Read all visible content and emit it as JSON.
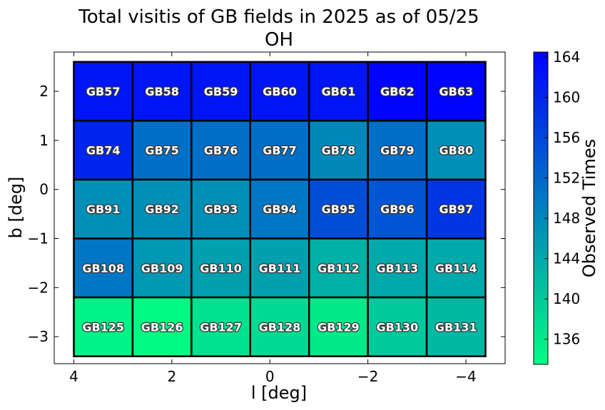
{
  "chart_data": {
    "type": "heatmap",
    "title": "Total visitis of GB fields in 2025 as of 05/25",
    "subtitle": "OH",
    "xlabel": "l [deg]",
    "ylabel": "b [deg]",
    "colorbar_label": "Observed Times",
    "xlim": [
      4.4,
      -4.8
    ],
    "ylim": [
      -3.55,
      2.8
    ],
    "x_ticks": [
      {
        "value": 4,
        "label": "4"
      },
      {
        "value": 2,
        "label": "2"
      },
      {
        "value": 0,
        "label": "0"
      },
      {
        "value": -2,
        "label": "−2"
      },
      {
        "value": -4,
        "label": "−4"
      }
    ],
    "y_ticks": [
      {
        "value": 2,
        "label": "2"
      },
      {
        "value": 1,
        "label": "1"
      },
      {
        "value": 0,
        "label": "0"
      },
      {
        "value": -1,
        "label": "−1"
      },
      {
        "value": -2,
        "label": "−2"
      },
      {
        "value": -3,
        "label": "−3"
      }
    ],
    "colorbar_range": [
      133.5,
      164.5
    ],
    "colorbar_ticks": [
      {
        "value": 136,
        "label": "136"
      },
      {
        "value": 140,
        "label": "140"
      },
      {
        "value": 144,
        "label": "144"
      },
      {
        "value": 148,
        "label": "148"
      },
      {
        "value": 152,
        "label": "152"
      },
      {
        "value": 156,
        "label": "156"
      },
      {
        "value": 160,
        "label": "160"
      },
      {
        "value": 164,
        "label": "164"
      }
    ],
    "colormap": [
      "#00ff80",
      "#0000ff"
    ],
    "grid": false,
    "cell_extent": {
      "l_edges": [
        4.0,
        2.8,
        1.6,
        0.4,
        -0.8,
        -2.0,
        -3.2,
        -4.4
      ],
      "b_edges": [
        2.6,
        1.4,
        0.2,
        -1.0,
        -2.2,
        -3.4
      ]
    },
    "cells": [
      [
        {
          "name": "GB57",
          "value": 162
        },
        {
          "name": "GB58",
          "value": 162
        },
        {
          "name": "GB59",
          "value": 162
        },
        {
          "name": "GB60",
          "value": 162
        },
        {
          "name": "GB61",
          "value": 162
        },
        {
          "name": "GB62",
          "value": 164
        },
        {
          "name": "GB63",
          "value": 164
        }
      ],
      [
        {
          "name": "GB74",
          "value": 160
        },
        {
          "name": "GB75",
          "value": 151
        },
        {
          "name": "GB76",
          "value": 151
        },
        {
          "name": "GB77",
          "value": 151
        },
        {
          "name": "GB78",
          "value": 148
        },
        {
          "name": "GB79",
          "value": 151
        },
        {
          "name": "GB80",
          "value": 147
        }
      ],
      [
        {
          "name": "GB91",
          "value": 147
        },
        {
          "name": "GB92",
          "value": 147
        },
        {
          "name": "GB93",
          "value": 147
        },
        {
          "name": "GB94",
          "value": 150
        },
        {
          "name": "GB95",
          "value": 155
        },
        {
          "name": "GB96",
          "value": 154
        },
        {
          "name": "GB97",
          "value": 158
        }
      ],
      [
        {
          "name": "GB108",
          "value": 150
        },
        {
          "name": "GB109",
          "value": 146
        },
        {
          "name": "GB110",
          "value": 145
        },
        {
          "name": "GB111",
          "value": 145
        },
        {
          "name": "GB112",
          "value": 143
        },
        {
          "name": "GB113",
          "value": 144
        },
        {
          "name": "GB114",
          "value": 144
        }
      ],
      [
        {
          "name": "GB125",
          "value": 135
        },
        {
          "name": "GB126",
          "value": 134
        },
        {
          "name": "GB127",
          "value": 137
        },
        {
          "name": "GB128",
          "value": 138
        },
        {
          "name": "GB129",
          "value": 136
        },
        {
          "name": "GB130",
          "value": 140
        },
        {
          "name": "GB131",
          "value": 142
        }
      ]
    ]
  }
}
